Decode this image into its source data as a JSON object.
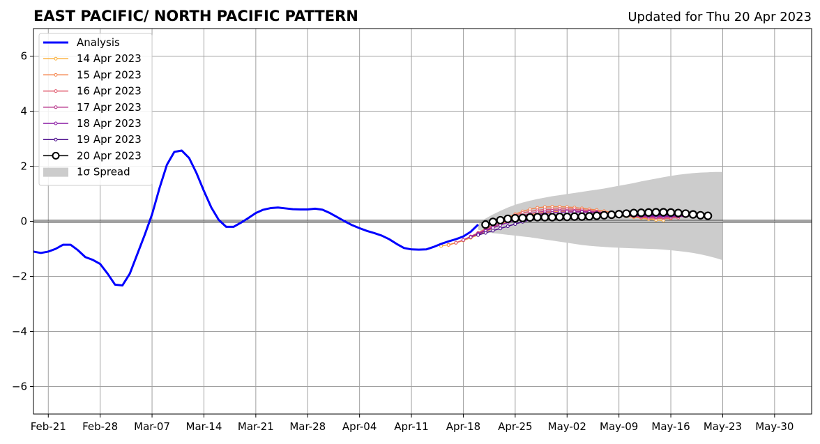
{
  "chart_data": {
    "type": "line",
    "title": "EAST PACIFIC/ NORTH PACIFIC PATTERN",
    "subtitle": "Updated for Thu 20 Apr 2023",
    "xlabel": "",
    "ylabel": "",
    "x_unit": "date",
    "xlim": [
      "2023-02-19",
      "2023-06-04"
    ],
    "ylim": [
      -7,
      7
    ],
    "grid": true,
    "legend_position": "top-left",
    "x_ticks": [
      {
        "date": "2023-02-21",
        "label": "Feb-21"
      },
      {
        "date": "2023-02-28",
        "label": "Feb-28"
      },
      {
        "date": "2023-03-07",
        "label": "Mar-07"
      },
      {
        "date": "2023-03-14",
        "label": "Mar-14"
      },
      {
        "date": "2023-03-21",
        "label": "Mar-21"
      },
      {
        "date": "2023-03-28",
        "label": "Mar-28"
      },
      {
        "date": "2023-04-04",
        "label": "Apr-04"
      },
      {
        "date": "2023-04-11",
        "label": "Apr-11"
      },
      {
        "date": "2023-04-18",
        "label": "Apr-18"
      },
      {
        "date": "2023-04-25",
        "label": "Apr-25"
      },
      {
        "date": "2023-05-02",
        "label": "May-02"
      },
      {
        "date": "2023-05-09",
        "label": "May-09"
      },
      {
        "date": "2023-05-16",
        "label": "May-16"
      },
      {
        "date": "2023-05-23",
        "label": "May-23"
      },
      {
        "date": "2023-05-30",
        "label": "May-30"
      }
    ],
    "y_ticks": [
      {
        "value": 6,
        "label": "6"
      },
      {
        "value": 4,
        "label": "4"
      },
      {
        "value": 2,
        "label": "2"
      },
      {
        "value": 0,
        "label": "0"
      },
      {
        "value": -2,
        "label": "−2"
      },
      {
        "value": -4,
        "label": "−4"
      },
      {
        "value": -6,
        "label": "−6"
      }
    ],
    "legend": [
      {
        "label": "Analysis",
        "color": "#0000ff",
        "kind": "thick-line"
      },
      {
        "label": "14 Apr 2023",
        "color": "#fbb13c",
        "kind": "line-dot"
      },
      {
        "label": "15 Apr 2023",
        "color": "#f4844c",
        "kind": "line-dot"
      },
      {
        "label": "16 Apr 2023",
        "color": "#e05a6e",
        "kind": "line-dot"
      },
      {
        "label": "17 Apr 2023",
        "color": "#b8378c",
        "kind": "line-dot"
      },
      {
        "label": "18 Apr 2023",
        "color": "#8a1aa3",
        "kind": "line-dot"
      },
      {
        "label": "19 Apr 2023",
        "color": "#4b0c8c",
        "kind": "line-dot"
      },
      {
        "label": "20 Apr 2023",
        "color": "#000000",
        "kind": "line-circle"
      },
      {
        "label": "1σ Spread",
        "color": "#cccccc",
        "kind": "patch"
      }
    ],
    "analysis": {
      "name": "Analysis",
      "color": "#0000ff",
      "x": [
        "2023-02-19",
        "2023-02-20",
        "2023-02-21",
        "2023-02-22",
        "2023-02-23",
        "2023-02-24",
        "2023-02-25",
        "2023-02-26",
        "2023-02-27",
        "2023-02-28",
        "2023-03-01",
        "2023-03-02",
        "2023-03-03",
        "2023-03-04",
        "2023-03-05",
        "2023-03-06",
        "2023-03-07",
        "2023-03-08",
        "2023-03-09",
        "2023-03-10",
        "2023-03-11",
        "2023-03-12",
        "2023-03-13",
        "2023-03-14",
        "2023-03-15",
        "2023-03-16",
        "2023-03-17",
        "2023-03-18",
        "2023-03-19",
        "2023-03-20",
        "2023-03-21",
        "2023-03-22",
        "2023-03-23",
        "2023-03-24",
        "2023-03-25",
        "2023-03-26",
        "2023-03-27",
        "2023-03-28",
        "2023-03-29",
        "2023-03-30",
        "2023-03-31",
        "2023-04-01",
        "2023-04-02",
        "2023-04-03",
        "2023-04-04",
        "2023-04-05",
        "2023-04-06",
        "2023-04-07",
        "2023-04-08",
        "2023-04-09",
        "2023-04-10",
        "2023-04-11",
        "2023-04-12",
        "2023-04-13",
        "2023-04-14",
        "2023-04-15",
        "2023-04-16",
        "2023-04-17",
        "2023-04-18",
        "2023-04-19",
        "2023-04-20"
      ],
      "y": [
        -1.1,
        -1.15,
        -1.1,
        -1.0,
        -0.85,
        -0.85,
        -1.05,
        -1.3,
        -1.4,
        -1.55,
        -1.9,
        -2.3,
        -2.33,
        -1.9,
        -1.2,
        -0.5,
        0.25,
        1.2,
        2.05,
        2.52,
        2.57,
        2.3,
        1.75,
        1.1,
        0.5,
        0.05,
        -0.2,
        -0.2,
        -0.05,
        0.12,
        0.3,
        0.42,
        0.48,
        0.5,
        0.47,
        0.44,
        0.43,
        0.43,
        0.46,
        0.42,
        0.3,
        0.15,
        0.0,
        -0.14,
        -0.25,
        -0.35,
        -0.43,
        -0.52,
        -0.65,
        -0.82,
        -0.97,
        -1.02,
        -1.03,
        -1.02,
        -0.93,
        -0.82,
        -0.73,
        -0.65,
        -0.55,
        -0.38,
        -0.12
      ]
    },
    "forecasts": [
      {
        "name": "14 Apr 2023",
        "color": "#fbb13c",
        "start": "2023-04-15",
        "y": [
          -0.9,
          -0.85,
          -0.78,
          -0.7,
          -0.6,
          -0.5,
          -0.38,
          -0.25,
          -0.12,
          0.0,
          0.1,
          0.18,
          0.24,
          0.28,
          0.32,
          0.34,
          0.36,
          0.36,
          0.35,
          0.34,
          0.32,
          0.3,
          0.28,
          0.25,
          0.22,
          0.18,
          0.15,
          0.12,
          0.08,
          0.05,
          0.03
        ]
      },
      {
        "name": "15 Apr 2023",
        "color": "#f4844c",
        "start": "2023-04-16",
        "y": [
          -0.86,
          -0.78,
          -0.68,
          -0.55,
          -0.42,
          -0.28,
          -0.14,
          0.0,
          0.14,
          0.26,
          0.36,
          0.44,
          0.49,
          0.52,
          0.53,
          0.53,
          0.52,
          0.5,
          0.47,
          0.44,
          0.41,
          0.37,
          0.33,
          0.29,
          0.25,
          0.21,
          0.17,
          0.14,
          0.11,
          0.1,
          0.1
        ]
      },
      {
        "name": "16 Apr 2023",
        "color": "#e05a6e",
        "start": "2023-04-17",
        "y": [
          -0.78,
          -0.68,
          -0.55,
          -0.42,
          -0.28,
          -0.14,
          0.0,
          0.12,
          0.22,
          0.3,
          0.36,
          0.4,
          0.43,
          0.44,
          0.45,
          0.45,
          0.44,
          0.42,
          0.39,
          0.36,
          0.32,
          0.28,
          0.24,
          0.2,
          0.17,
          0.14,
          0.12,
          0.11,
          0.11,
          0.12,
          0.13
        ]
      },
      {
        "name": "17 Apr 2023",
        "color": "#b8378c",
        "start": "2023-04-18",
        "y": [
          -0.68,
          -0.56,
          -0.44,
          -0.32,
          -0.2,
          -0.08,
          0.04,
          0.14,
          0.22,
          0.28,
          0.33,
          0.36,
          0.38,
          0.39,
          0.39,
          0.38,
          0.37,
          0.35,
          0.33,
          0.3,
          0.27,
          0.24,
          0.21,
          0.19,
          0.17,
          0.16,
          0.15,
          0.15,
          0.16,
          0.17,
          0.18
        ]
      },
      {
        "name": "18 Apr 2023",
        "color": "#8a1aa3",
        "start": "2023-04-19",
        "y": [
          -0.58,
          -0.46,
          -0.35,
          -0.24,
          -0.14,
          -0.04,
          0.05,
          0.13,
          0.2,
          0.25,
          0.29,
          0.31,
          0.33,
          0.34,
          0.34,
          0.34,
          0.33,
          0.32,
          0.3,
          0.28,
          0.26,
          0.24,
          0.22,
          0.2,
          0.19,
          0.18,
          0.18,
          0.18,
          0.19,
          0.19,
          0.2
        ]
      },
      {
        "name": "19 Apr 2023",
        "color": "#4b0c8c",
        "start": "2023-04-20",
        "y": [
          -0.5,
          -0.42,
          -0.34,
          -0.26,
          -0.18,
          -0.1,
          -0.02,
          0.05,
          0.1,
          0.14,
          0.17,
          0.19,
          0.2,
          0.21,
          0.22,
          0.22,
          0.22,
          0.22,
          0.22,
          0.22,
          0.22,
          0.22,
          0.22,
          0.22,
          0.22,
          0.22,
          0.22,
          0.22,
          0.22,
          0.22,
          0.22
        ]
      },
      {
        "name": "20 Apr 2023",
        "color": "#000000",
        "start": "2023-04-21",
        "y": [
          -0.12,
          -0.02,
          0.04,
          0.09,
          0.11,
          0.12,
          0.14,
          0.15,
          0.15,
          0.15,
          0.16,
          0.16,
          0.17,
          0.17,
          0.18,
          0.2,
          0.22,
          0.24,
          0.26,
          0.28,
          0.3,
          0.31,
          0.32,
          0.33,
          0.33,
          0.32,
          0.3,
          0.28,
          0.25,
          0.22,
          0.2
        ]
      }
    ],
    "spread": {
      "name": "1σ Spread",
      "color": "#cccccc",
      "x_start": "2023-04-20",
      "upper": [
        -0.1,
        0.1,
        0.25,
        0.38,
        0.5,
        0.6,
        0.68,
        0.75,
        0.81,
        0.86,
        0.91,
        0.95,
        0.99,
        1.03,
        1.07,
        1.11,
        1.15,
        1.19,
        1.24,
        1.29,
        1.34,
        1.39,
        1.45,
        1.5,
        1.55,
        1.6,
        1.65,
        1.69,
        1.72,
        1.75,
        1.77,
        1.78,
        1.79,
        1.79
      ],
      "lower": [
        -0.3,
        -0.4,
        -0.43,
        -0.46,
        -0.49,
        -0.52,
        -0.55,
        -0.58,
        -0.62,
        -0.66,
        -0.7,
        -0.74,
        -0.78,
        -0.82,
        -0.86,
        -0.89,
        -0.91,
        -0.93,
        -0.95,
        -0.96,
        -0.97,
        -0.98,
        -0.99,
        -1.0,
        -1.01,
        -1.03,
        -1.05,
        -1.08,
        -1.11,
        -1.15,
        -1.2,
        -1.26,
        -1.33,
        -1.41
      ]
    }
  }
}
